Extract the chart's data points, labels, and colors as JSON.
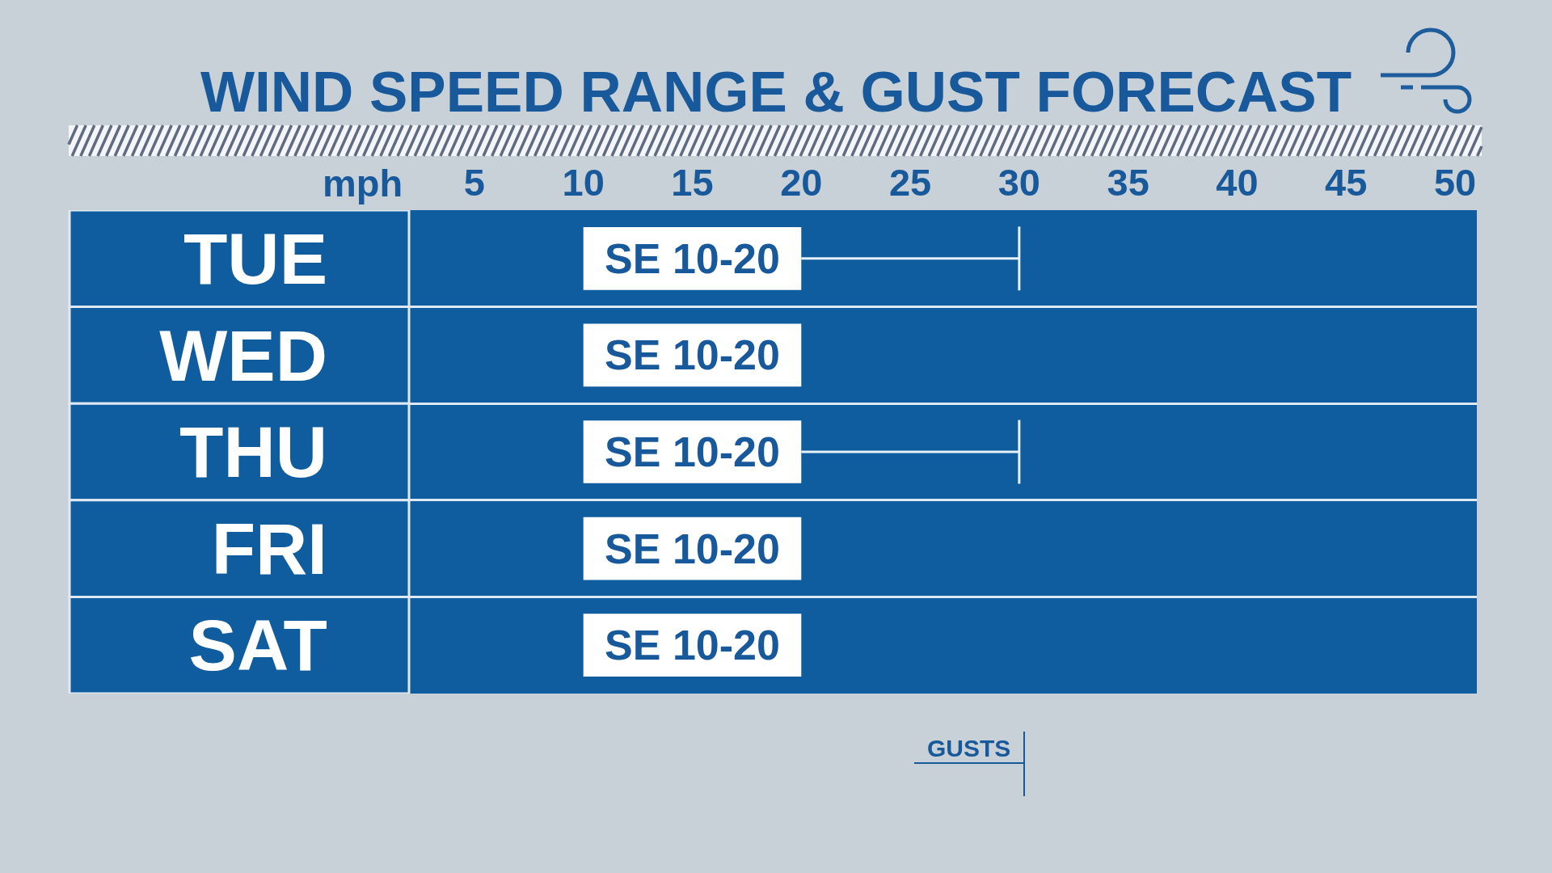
{
  "chart_data": {
    "type": "bar",
    "orientation": "horizontal",
    "title": "WIND SPEED RANGE & GUST FORECAST",
    "xlabel": "mph",
    "categories": [
      "TUE",
      "WED",
      "THU",
      "FRI",
      "SAT"
    ],
    "xlim": [
      2,
      51
    ],
    "xticks": [
      5,
      10,
      15,
      20,
      25,
      30,
      35,
      40,
      45,
      50
    ],
    "grid": "y",
    "series": [
      {
        "color": "#ffffff",
        "base": [
          10,
          10,
          10,
          10,
          10
        ],
        "values": [
          10,
          10,
          10,
          10,
          10
        ],
        "value_labels": [
          "SE 10-20",
          "SE 10-20",
          "SE 10-20",
          "SE 10-20",
          "SE 10-20"
        ],
        "errors": [
          [
            20,
            30
          ],
          null,
          [
            20,
            30
          ],
          null,
          null
        ]
      }
    ],
    "annotations": [
      "GUSTS"
    ]
  }
}
